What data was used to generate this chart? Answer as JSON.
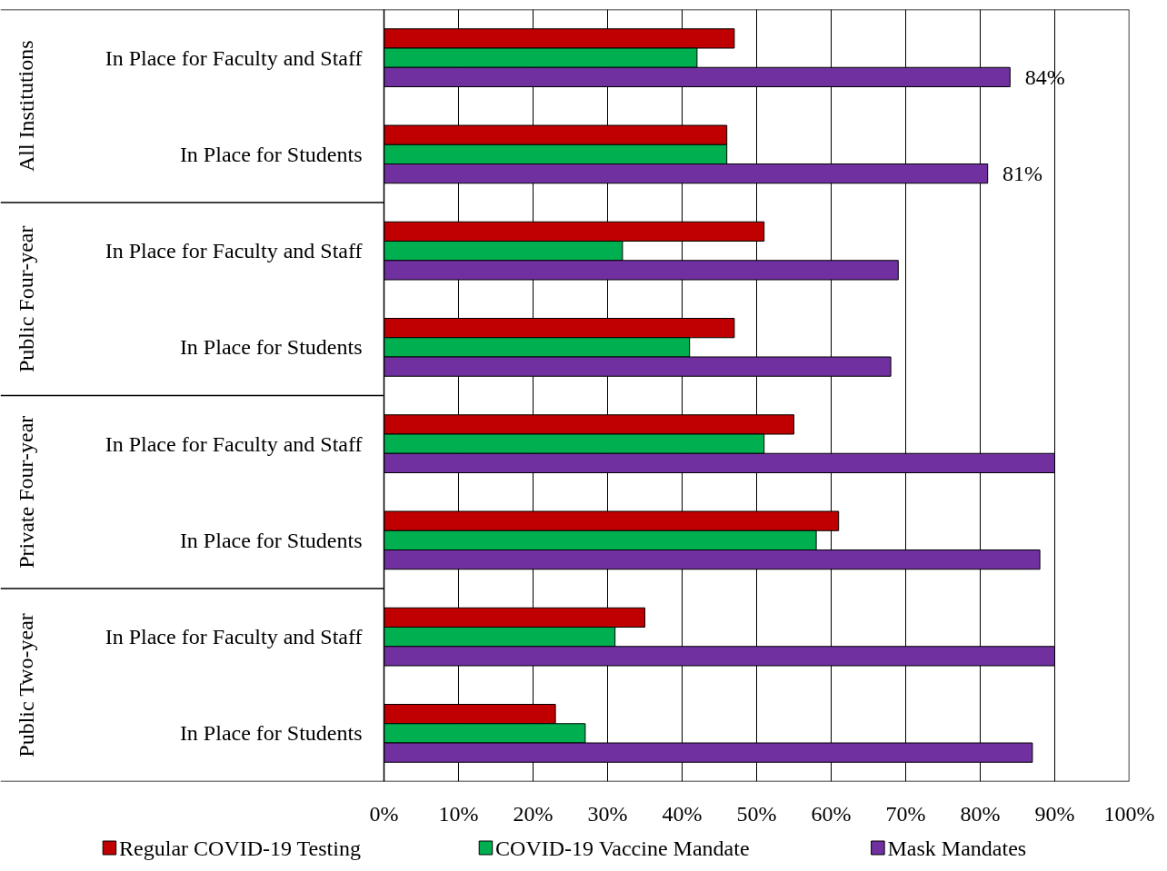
{
  "chart_data": {
    "type": "bar",
    "orientation": "horizontal",
    "categories": [
      "In Place for Faculty and Staff",
      "In Place for Students",
      "In Place for Faculty and Staff",
      "In Place for Students",
      "In Place for Faculty and Staff",
      "In Place for Students",
      "In Place for Faculty and Staff",
      "In Place for Students"
    ],
    "annotations": [
      "All Institutions",
      "Public Four-year",
      "Private Four-year",
      "Public Two-year"
    ],
    "series": [
      {
        "name": "Regular COVID-19 Testing",
        "color": "#c00000",
        "values": [
          47,
          46,
          51,
          47,
          55,
          61,
          35,
          23
        ]
      },
      {
        "name": "COVID-19 Vaccine Mandate",
        "color": "#00b050",
        "values": [
          42,
          46,
          32,
          41,
          51,
          58,
          31,
          27
        ]
      },
      {
        "name": "Mask Mandates",
        "color": "#7030a0",
        "values": [
          84,
          81,
          69,
          68,
          90,
          88,
          90,
          87
        ],
        "value_labels": [
          "84%",
          "81%",
          null,
          null,
          null,
          null,
          null,
          null
        ]
      }
    ],
    "xlim": [
      0,
      100
    ],
    "xticks": [
      {
        "value": 0,
        "label": "0%"
      },
      {
        "value": 10,
        "label": "10%"
      },
      {
        "value": 20,
        "label": "20%"
      },
      {
        "value": 30,
        "label": "30%"
      },
      {
        "value": 40,
        "label": "40%"
      },
      {
        "value": 50,
        "label": "50%"
      },
      {
        "value": 60,
        "label": "60%"
      },
      {
        "value": 70,
        "label": "70%"
      },
      {
        "value": 80,
        "label": "80%"
      },
      {
        "value": 90,
        "label": "90%"
      },
      {
        "value": 100,
        "label": "100%"
      }
    ],
    "grid": "x",
    "legend": "bottom"
  }
}
